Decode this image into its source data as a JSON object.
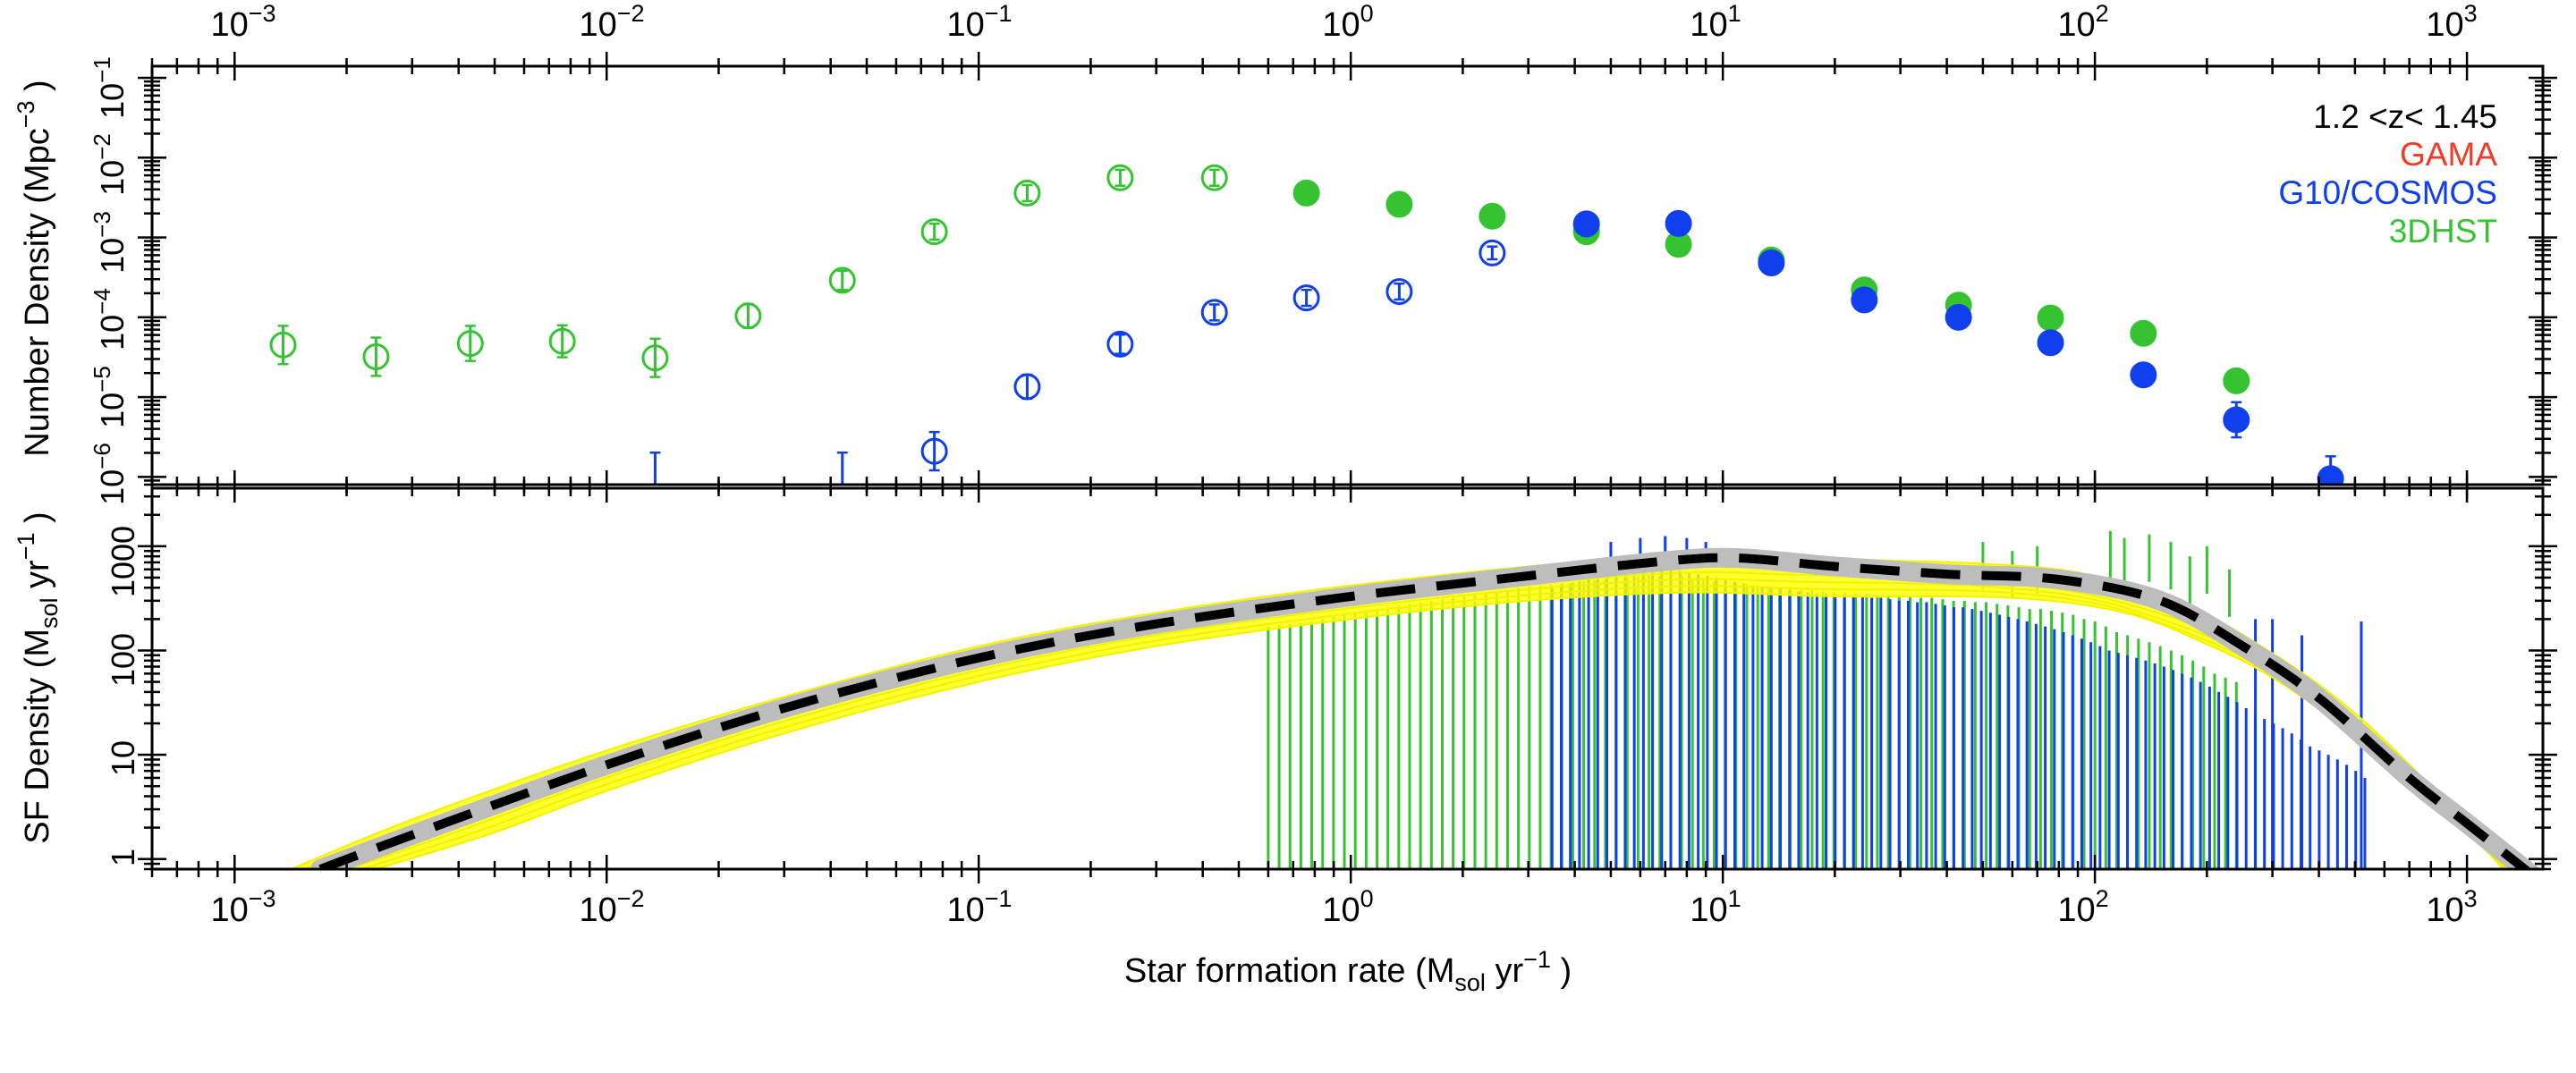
{
  "colors": {
    "gama": "#f23a26",
    "g10": "#1040ee",
    "dhst": "#36c332",
    "model_fill": "#ffff00",
    "model_line": "#f2f200",
    "fit_band": "#bdbdbd",
    "fit_line": "#000000"
  },
  "chart_data": [
    {
      "type": "scatter",
      "panel": "top",
      "title": "",
      "xlabel": "",
      "ylabel_main": "Number Density (Mpc",
      "ylabel_sup": "−3",
      "ylabel_close": ")",
      "xscale": "log",
      "yscale": "log",
      "xlim": [
        0.0006,
        1600
      ],
      "ylim": [
        8e-07,
        0.14
      ],
      "x_tick_bases": [
        "10",
        "10",
        "10",
        "10",
        "10",
        "10",
        "10"
      ],
      "x_tick_exps": [
        "−3",
        "−2",
        "−1",
        "0",
        "1",
        "2",
        "3"
      ],
      "x_tick_values": [
        0.001,
        0.01,
        0.1,
        1,
        10,
        100,
        1000
      ],
      "y_tick_bases": [
        "10",
        "10",
        "10",
        "10",
        "10",
        "10"
      ],
      "y_tick_exps": [
        "−6",
        "−5",
        "−4",
        "−3",
        "−2",
        "−1"
      ],
      "y_tick_values": [
        1e-06,
        1e-05,
        0.0001,
        0.001,
        0.01,
        0.1
      ],
      "legend": {
        "position": "top-right",
        "redshift": "1.2 <z< 1.45",
        "entries": [
          {
            "label": "GAMA",
            "color": "#f23a26"
          },
          {
            "label": "G10/COSMOS",
            "color": "#1040ee"
          },
          {
            "label": "3DHST",
            "color": "#36c332"
          }
        ]
      },
      "series": [
        {
          "name": "3DHST",
          "color": "#36c332",
          "points": [
            {
              "x": 0.00135,
              "y": 4.5e-05,
              "err": 0.24,
              "filled": false
            },
            {
              "x": 0.0024,
              "y": 3.2e-05,
              "err": 0.24,
              "filled": false
            },
            {
              "x": 0.0043,
              "y": 4.7e-05,
              "err": 0.22,
              "filled": false
            },
            {
              "x": 0.0076,
              "y": 5e-05,
              "err": 0.2,
              "filled": false
            },
            {
              "x": 0.0135,
              "y": 3.1e-05,
              "err": 0.24,
              "filled": false
            },
            {
              "x": 0.024,
              "y": 0.000104,
              "err": 0.15,
              "filled": false
            },
            {
              "x": 0.043,
              "y": 0.00029,
              "err": 0.12,
              "filled": false
            },
            {
              "x": 0.076,
              "y": 0.00118,
              "err": 0.1,
              "filled": false
            },
            {
              "x": 0.135,
              "y": 0.0036,
              "err": 0.1,
              "filled": false
            },
            {
              "x": 0.24,
              "y": 0.0056,
              "err": 0.1,
              "filled": false
            },
            {
              "x": 0.43,
              "y": 0.0056,
              "err": 0.1,
              "filled": false
            },
            {
              "x": 0.76,
              "y": 0.0036,
              "err": 0.04,
              "filled": true
            },
            {
              "x": 1.35,
              "y": 0.0026,
              "err": 0.04,
              "filled": true
            },
            {
              "x": 2.4,
              "y": 0.00185,
              "err": 0.04,
              "filled": true
            },
            {
              "x": 4.3,
              "y": 0.00118,
              "err": 0.04,
              "filled": true
            },
            {
              "x": 7.6,
              "y": 0.00082,
              "err": 0.04,
              "filled": true
            },
            {
              "x": 13.5,
              "y": 0.00052,
              "err": 0.04,
              "filled": true
            },
            {
              "x": 24,
              "y": 0.00022,
              "err": 0.05,
              "filled": true
            },
            {
              "x": 43,
              "y": 0.000142,
              "err": 0.05,
              "filled": true
            },
            {
              "x": 76,
              "y": 9.8e-05,
              "err": 0.05,
              "filled": true
            },
            {
              "x": 135,
              "y": 6.3e-05,
              "err": 0.06,
              "filled": true
            },
            {
              "x": 240,
              "y": 1.6e-05,
              "err": 0.14,
              "filled": true
            }
          ]
        },
        {
          "name": "G10/COSMOS",
          "color": "#1040ee",
          "points": [
            {
              "x": 0.0135,
              "y": 9e-07,
              "err": 0.35,
              "filled": false,
              "bar_only": true
            },
            {
              "x": 0.043,
              "y": 9e-07,
              "err": 0.35,
              "filled": false,
              "bar_only": true
            },
            {
              "x": 0.076,
              "y": 2.1e-06,
              "err": 0.24,
              "filled": false
            },
            {
              "x": 0.135,
              "y": 1.35e-05,
              "err": 0.15,
              "filled": false
            },
            {
              "x": 0.24,
              "y": 4.6e-05,
              "err": 0.12,
              "filled": false
            },
            {
              "x": 0.43,
              "y": 0.000115,
              "err": 0.1,
              "filled": false
            },
            {
              "x": 0.76,
              "y": 0.000175,
              "err": 0.1,
              "filled": false
            },
            {
              "x": 1.35,
              "y": 0.00021,
              "err": 0.1,
              "filled": false
            },
            {
              "x": 2.4,
              "y": 0.00064,
              "err": 0.08,
              "filled": false
            },
            {
              "x": 4.3,
              "y": 0.00148,
              "err": 0.04,
              "filled": true
            },
            {
              "x": 7.6,
              "y": 0.0015,
              "err": 0.04,
              "filled": true
            },
            {
              "x": 13.5,
              "y": 0.00048,
              "err": 0.04,
              "filled": true
            },
            {
              "x": 24,
              "y": 0.000165,
              "err": 0.05,
              "filled": true
            },
            {
              "x": 43,
              "y": 0.0001,
              "err": 0.05,
              "filled": true
            },
            {
              "x": 76,
              "y": 4.8e-05,
              "err": 0.05,
              "filled": true
            },
            {
              "x": 135,
              "y": 1.9e-05,
              "err": 0.06,
              "filled": true
            },
            {
              "x": 240,
              "y": 5.2e-06,
              "err": 0.22,
              "filled": true
            },
            {
              "x": 430,
              "y": 9.5e-07,
              "err": 0.28,
              "filled": true
            }
          ]
        }
      ]
    },
    {
      "type": "line",
      "panel": "bottom",
      "title": "",
      "xlabel_main": "Star formation rate (M",
      "xlabel_sub": "sol",
      "xlabel_mid": " yr",
      "xlabel_sup": "−1",
      "xlabel_close": " )",
      "ylabel_main": "SF Density (M",
      "ylabel_sub": "sol",
      "ylabel_mid": " yr",
      "ylabel_sup": "−1",
      "ylabel_close": ")",
      "xscale": "log",
      "yscale": "log",
      "xlim": [
        0.0006,
        1600
      ],
      "ylim": [
        0.8,
        3600
      ],
      "x_tick_bases": [
        "10",
        "10",
        "10",
        "10",
        "10",
        "10",
        "10"
      ],
      "x_tick_exps": [
        "−3",
        "−2",
        "−1",
        "0",
        "1",
        "2",
        "3"
      ],
      "x_tick_values": [
        0.001,
        0.01,
        0.1,
        1,
        10,
        100,
        1000
      ],
      "y_tick_labels": [
        "1",
        "10",
        "100",
        "1000"
      ],
      "y_tick_values": [
        1,
        10,
        100,
        1000
      ],
      "fit": {
        "name": "Best fit",
        "points": [
          [
            0.0017,
            0.8
          ],
          [
            0.003,
            1.7
          ],
          [
            0.01,
            8
          ],
          [
            0.03,
            28
          ],
          [
            0.1,
            85
          ],
          [
            0.3,
            180
          ],
          [
            1,
            330
          ],
          [
            3,
            520
          ],
          [
            7,
            720
          ],
          [
            11,
            770
          ],
          [
            20,
            640
          ],
          [
            40,
            540
          ],
          [
            80,
            480
          ],
          [
            150,
            300
          ],
          [
            250,
            110
          ],
          [
            400,
            35
          ],
          [
            700,
            6
          ],
          [
            1000,
            2.2
          ],
          [
            1500,
            0.7
          ]
        ]
      },
      "model_band": {
        "upper": [
          [
            0.00142,
            0.8
          ],
          [
            0.003,
            2.4
          ],
          [
            0.01,
            11
          ],
          [
            0.03,
            36
          ],
          [
            0.1,
            110
          ],
          [
            0.3,
            230
          ],
          [
            1,
            420
          ],
          [
            3,
            640
          ],
          [
            8,
            860
          ],
          [
            12,
            860
          ],
          [
            25,
            740
          ],
          [
            50,
            680
          ],
          [
            90,
            560
          ],
          [
            160,
            320
          ],
          [
            280,
            110
          ],
          [
            500,
            25
          ],
          [
            1000,
            2.3
          ],
          [
            1400,
            0.8
          ]
        ],
        "lower": [
          [
            0.0024,
            0.8
          ],
          [
            0.005,
            1.8
          ],
          [
            0.01,
            4.5
          ],
          [
            0.03,
            16
          ],
          [
            0.1,
            50
          ],
          [
            0.3,
            110
          ],
          [
            1,
            200
          ],
          [
            3,
            300
          ],
          [
            8,
            360
          ],
          [
            20,
            330
          ],
          [
            60,
            320
          ],
          [
            120,
            230
          ],
          [
            200,
            115
          ],
          [
            300,
            55
          ],
          [
            500,
            15
          ],
          [
            800,
            3.5
          ],
          [
            1100,
            1.3
          ],
          [
            1250,
            0.8
          ]
        ]
      },
      "bins": {
        "dhst": {
          "x_start": 0.6,
          "x_end": 240,
          "count": 90,
          "values": [
            170,
            175,
            180,
            185,
            190,
            200,
            210,
            220,
            230,
            240,
            250,
            260,
            270,
            280,
            290,
            300,
            310,
            320,
            330,
            340,
            350,
            360,
            380,
            400,
            410,
            420,
            430,
            440,
            450,
            460,
            470,
            480,
            490,
            500,
            510,
            520,
            520,
            530,
            520,
            500,
            480,
            460,
            450,
            440,
            430,
            420,
            410,
            400,
            390,
            380,
            380,
            370,
            360,
            360,
            350,
            350,
            340,
            340,
            330,
            330,
            320,
            320,
            310,
            300,
            300,
            290,
            290,
            280,
            270,
            260,
            250,
            250,
            240,
            230,
            220,
            200,
            190,
            170,
            150,
            140,
            130,
            120,
            110,
            100,
            90,
            80,
            70,
            60,
            55,
            50
          ]
        },
        "g10": {
          "x_start": 3.4,
          "x_end": 520,
          "count": 90,
          "values": [
            400,
            420,
            440,
            460,
            480,
            500,
            520,
            540,
            560,
            580,
            600,
            620,
            620,
            600,
            580,
            560,
            540,
            520,
            500,
            480,
            460,
            440,
            420,
            410,
            400,
            390,
            380,
            370,
            360,
            350,
            350,
            340,
            340,
            330,
            330,
            320,
            320,
            310,
            300,
            300,
            290,
            290,
            280,
            270,
            260,
            260,
            250,
            240,
            230,
            220,
            210,
            200,
            190,
            180,
            170,
            160,
            150,
            140,
            130,
            120,
            110,
            100,
            95,
            90,
            85,
            80,
            75,
            70,
            65,
            60,
            55,
            50,
            45,
            40,
            36,
            32,
            28,
            25,
            22,
            20,
            18,
            16,
            14,
            12,
            11,
            10,
            9,
            8,
            7,
            6
          ]
        },
        "dhst_err_tops": [
          [
            110,
            1400
          ],
          [
            120,
            1200
          ],
          [
            140,
            1300
          ],
          [
            160,
            1100
          ],
          [
            180,
            800
          ],
          [
            200,
            1000
          ],
          [
            230,
            600
          ],
          [
            70,
            1000
          ],
          [
            60,
            900
          ],
          [
            50,
            1100
          ]
        ],
        "g10_err_tops": [
          [
            5,
            1100
          ],
          [
            6,
            1200
          ],
          [
            7,
            1250
          ],
          [
            8,
            1200
          ],
          [
            9,
            1100
          ],
          [
            270,
            200
          ],
          [
            300,
            200
          ],
          [
            360,
            140
          ],
          [
            520,
            190
          ]
        ]
      }
    }
  ]
}
